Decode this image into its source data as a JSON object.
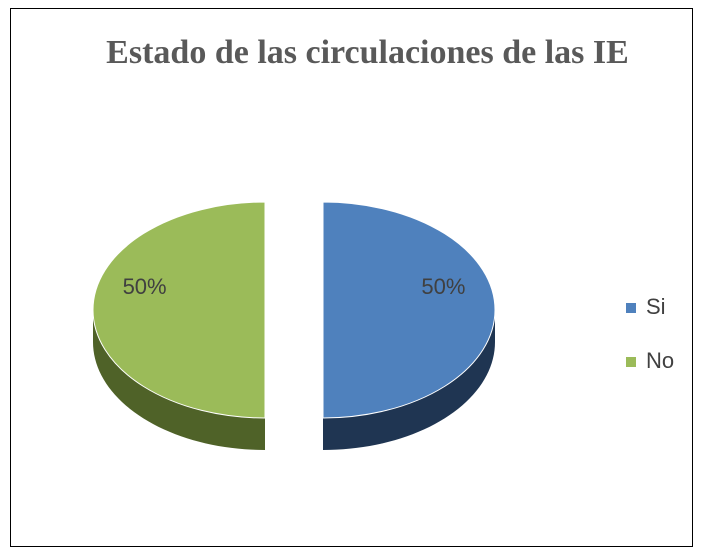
{
  "chart_data": {
    "type": "pie",
    "title": "Estado de las circulaciones de las IE",
    "categories": [
      "Si",
      "No"
    ],
    "values": [
      50,
      50
    ],
    "value_labels": [
      "50%",
      "50%"
    ],
    "colors": [
      "#4f81bd",
      "#9bbb59"
    ],
    "side_colors": [
      "#1f3552",
      "#4f6228"
    ],
    "legend": "right"
  }
}
